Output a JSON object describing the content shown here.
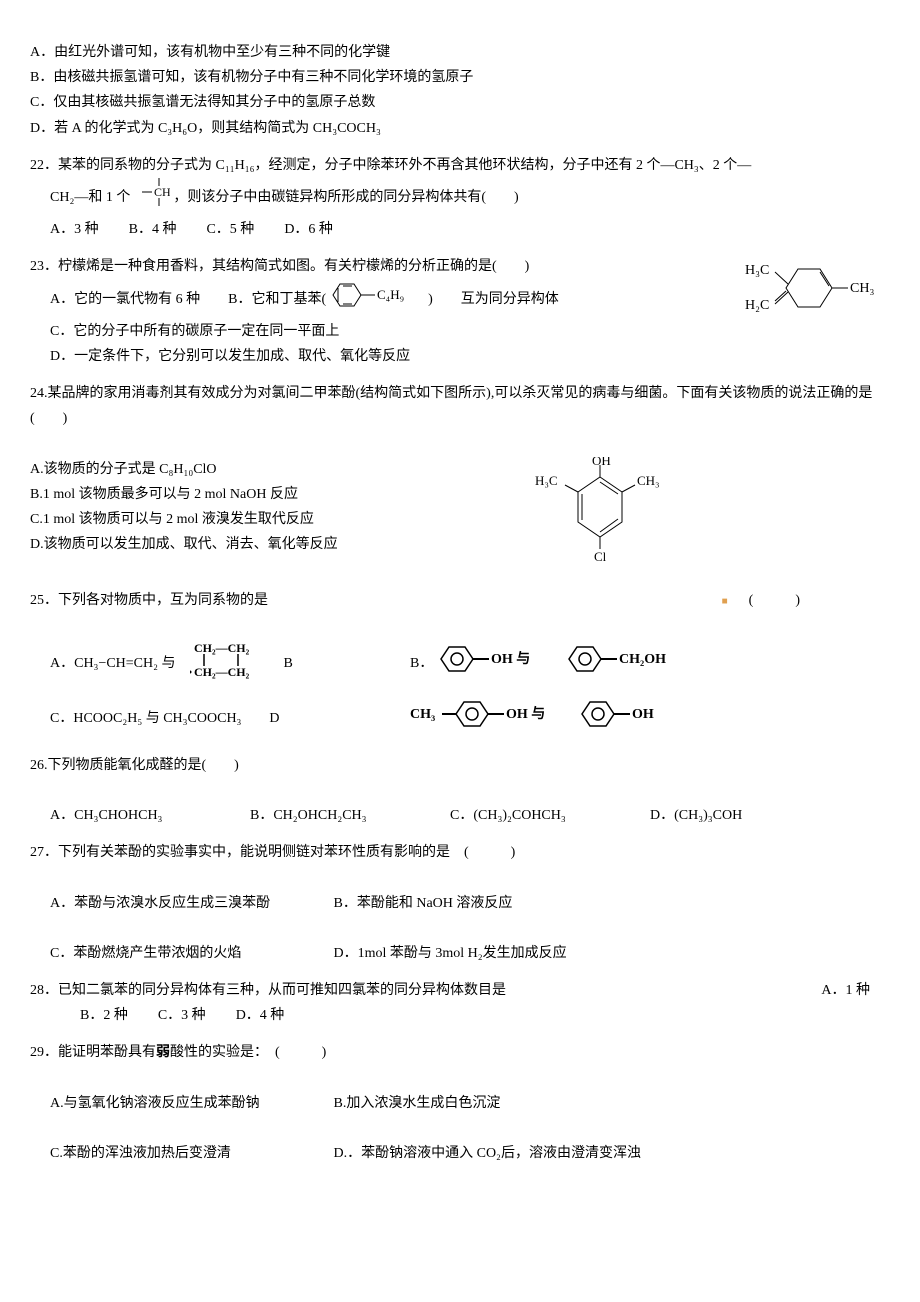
{
  "colors": {
    "text": "#000000",
    "bg": "#ffffff",
    "orange_dot": "#e0a050"
  },
  "fontsize": 14,
  "q21": {
    "A": "A．由红光外谱可知，该有机物中至少有三种不同的化学键",
    "B": "B．由核磁共振氢谱可知，该有机物分子中有三种不同化学环境的氢原子",
    "C": "C．仅由其核磁共振氢谱无法得知其分子中的氢原子总数",
    "D": "D．若 A 的化学式为 C₃H₆O，则其结构简式为 CH₃COCH₃"
  },
  "q22": {
    "stem1": "22．某苯的同系物的分子式为 C₁₁H₁₆，经测定，分子中除苯环外不再含其他环状结构，分子中还有 2 个—CH₃、2 个—",
    "stem2_before": "CH₂—和 1 个",
    "stem2_after": "，则该分子中由碳链异构所形成的同分异构体共有(　　)",
    "opts": {
      "A": "A．3 种",
      "B": "B．4 种",
      "C": "C．5 种",
      "D": "D．6 种"
    }
  },
  "q23": {
    "stem": "23．柠檬烯是一种食用香料，其结构简式如图。有关柠檬烯的分析正确的是(　　)",
    "A_before": "A．它的一氯代物有 6 种　　B．它和丁基苯(",
    "A_after": ")　　互为同分异构体",
    "C": "C．它的分子中所有的碳原子一定在同一平面上",
    "D": "D．一定条件下，它分别可以发生加成、取代、氧化等反应",
    "butyl_label": "C₄H₉",
    "fig_labels": {
      "h3c": "H₃C",
      "h2c": "H₂C",
      "ch3": "CH₃"
    }
  },
  "q24": {
    "stem": "24.某品牌的家用消毒剂其有效成分为对氯间二甲苯酚(结构简式如下图所示),可以杀灭常见的病毒与细菌。下面有关该物质的说法正确的是(　　)",
    "A": "A.该物质的分子式是 C₈H₁₀ClO",
    "B": "B.1 mol 该物质最多可以与 2 mol NaOH 反应",
    "C": "C.1 mol 该物质可以与 2 mol 液溴发生取代反应",
    "D": "D.该物质可以发生加成、取代、消去、氧化等反应",
    "fig_labels": {
      "oh": "OH",
      "h3c": "H₃C",
      "ch3": "CH₃",
      "cl": "Cl"
    }
  },
  "q25": {
    "stem": "25．下列各对物质中，互为同系物的是",
    "paren": "(　　　)",
    "A_before": "A．CH₃−CH=CH₂ 与",
    "A_after": "　B",
    "B": "B．",
    "C": "C．HCOOC₂H₅ 与 CH₃COOCH₃　　D",
    "D": "",
    "oh_yu": "OH 与",
    "ch2oh": "CH₂OH",
    "ch3_dash": "CH₃",
    "oh": "OH",
    "cyc_top": "CH₂—CH₂",
    "cyc_bot": "CH₂—CH₂"
  },
  "q26": {
    "stem": "26.下列物质能氧化成醛的是(　　)",
    "opts": {
      "A": "A．CH₃CHOHCH₃",
      "B": "B．CH₂OHCH₂CH₃",
      "C": "C．(CH₃)₂COHCH₃",
      "D": "D．(CH₃)₃COH"
    }
  },
  "q27": {
    "stem": "27．下列有关苯酚的实验事实中，能说明侧链对苯环性质有影响的是　(　　　)",
    "row1": {
      "A": "A．苯酚与浓溴水反应生成三溴苯酚",
      "B": "B．苯酚能和 NaOH 溶液反应"
    },
    "row2": {
      "C": "C．苯酚燃烧产生带浓烟的火焰",
      "D": "D．1mol 苯酚与 3mol H₂发生加成反应"
    }
  },
  "q28": {
    "stem": "28．已知二氯苯的同分异构体有三种，从而可推知四氯苯的同分异构体数目是",
    "opts": {
      "A": "A．1 种",
      "B": "B．2 种",
      "C": "C．3 种",
      "D": "D．4 种"
    }
  },
  "q29": {
    "stem": "29．能证明苯酚具有<b>弱</b>酸性的实验是：　(　　　)",
    "row1": {
      "A": "A.与氢氧化钠溶液反应生成苯酚钠",
      "B": "B.加入浓溴水生成白色沉淀"
    },
    "row2": {
      "C": "C.苯酚的浑浊液加热后变澄清",
      "D": "D.．苯酚钠溶液中通入 CO₂后，溶液由澄清变浑浊"
    }
  }
}
